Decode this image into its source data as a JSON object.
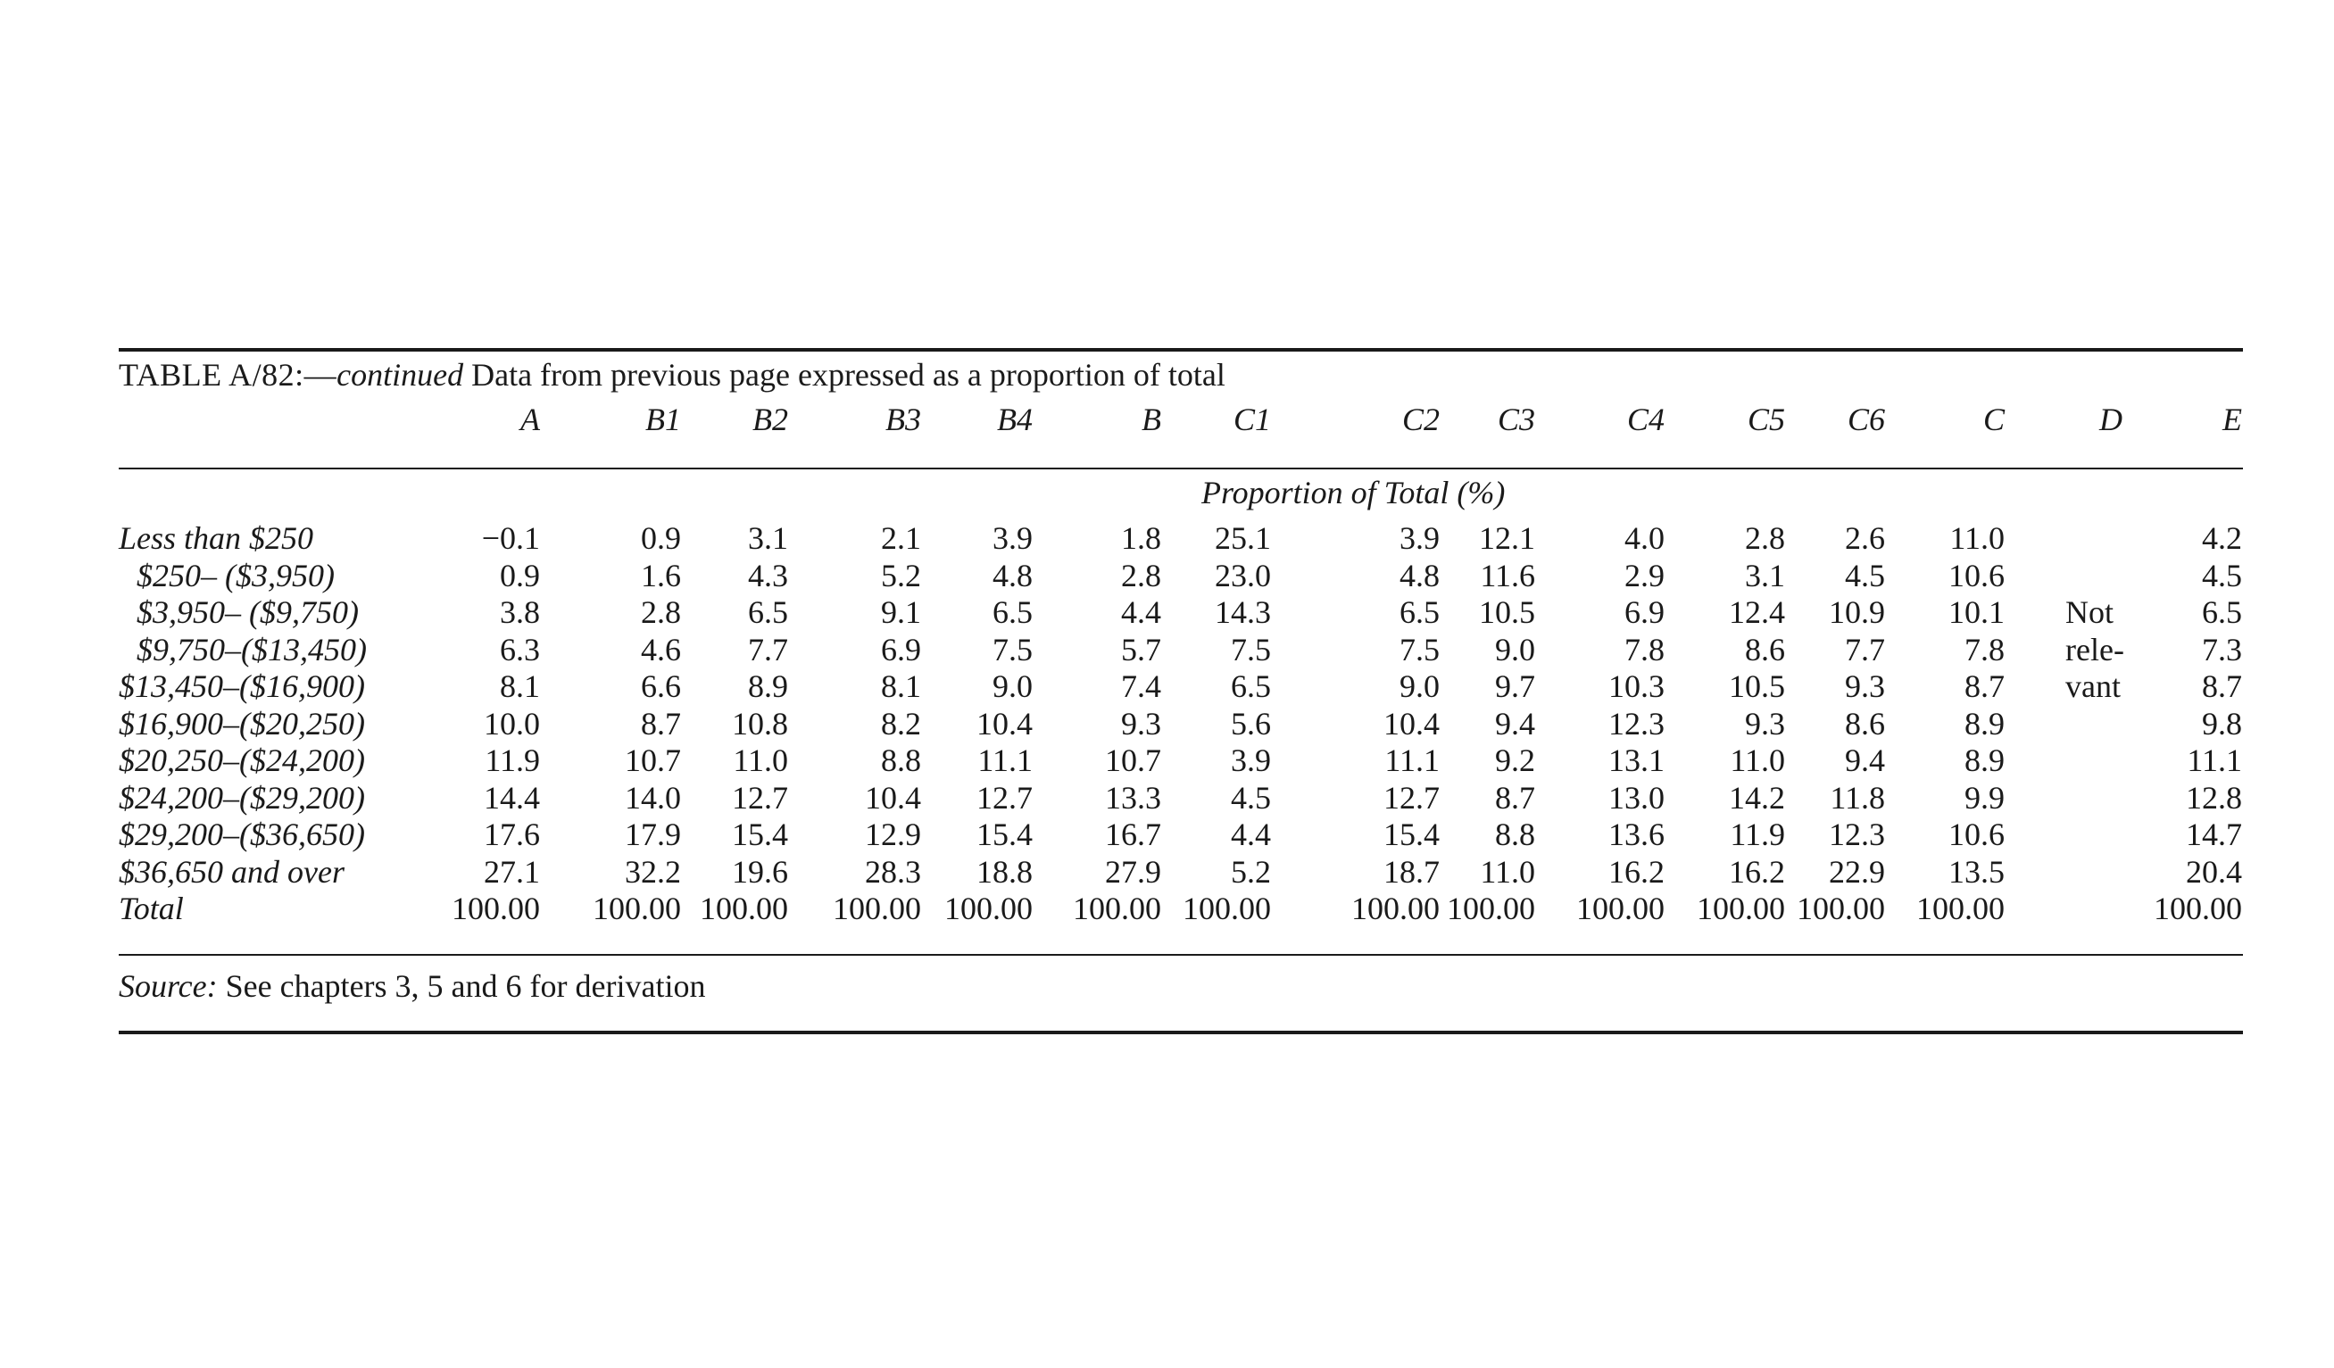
{
  "table": {
    "caption_id": "TABLE A/82:—",
    "caption_cont": "continued",
    "caption_text": " Data from previous page expressed as a proportion of total",
    "columns": [
      "A",
      "B1",
      "B2",
      "B3",
      "B4",
      "B",
      "C1",
      "C2",
      "C3",
      "C4",
      "C5",
      "C6",
      "C",
      "D",
      "E"
    ],
    "unit_label": "Proportion of Total (%)",
    "rows": [
      {
        "label": "Less than $250",
        "values": [
          "−0.1",
          "0.9",
          "3.1",
          "2.1",
          "3.9",
          "1.8",
          "25.1",
          "3.9",
          "12.1",
          "4.0",
          "2.8",
          "2.6",
          "11.0",
          "",
          "4.2"
        ]
      },
      {
        "label": "$250– ($3,950)",
        "values": [
          "0.9",
          "1.6",
          "4.3",
          "5.2",
          "4.8",
          "2.8",
          "23.0",
          "4.8",
          "11.6",
          "2.9",
          "3.1",
          "4.5",
          "10.6",
          "",
          "4.5"
        ]
      },
      {
        "label": "$3,950– ($9,750)",
        "values": [
          "3.8",
          "2.8",
          "6.5",
          "9.1",
          "6.5",
          "4.4",
          "14.3",
          "6.5",
          "10.5",
          "6.9",
          "12.4",
          "10.9",
          "10.1",
          "",
          "6.5"
        ]
      },
      {
        "label": "$9,750–($13,450)",
        "values": [
          "6.3",
          "4.6",
          "7.7",
          "6.9",
          "7.5",
          "5.7",
          "7.5",
          "7.5",
          "9.0",
          "7.8",
          "8.6",
          "7.7",
          "7.8",
          "",
          "7.3"
        ]
      },
      {
        "label": "$13,450–($16,900)",
        "values": [
          "8.1",
          "6.6",
          "8.9",
          "8.1",
          "9.0",
          "7.4",
          "6.5",
          "9.0",
          "9.7",
          "10.3",
          "10.5",
          "9.3",
          "8.7",
          "",
          "8.7"
        ]
      },
      {
        "label": "$16,900–($20,250)",
        "values": [
          "10.0",
          "8.7",
          "10.8",
          "8.2",
          "10.4",
          "9.3",
          "5.6",
          "10.4",
          "9.4",
          "12.3",
          "9.3",
          "8.6",
          "8.9",
          "",
          "9.8"
        ]
      },
      {
        "label": "$20,250–($24,200)",
        "values": [
          "11.9",
          "10.7",
          "11.0",
          "8.8",
          "11.1",
          "10.7",
          "3.9",
          "11.1",
          "9.2",
          "13.1",
          "11.0",
          "9.4",
          "8.9",
          "",
          "11.1"
        ]
      },
      {
        "label": "$24,200–($29,200)",
        "values": [
          "14.4",
          "14.0",
          "12.7",
          "10.4",
          "12.7",
          "13.3",
          "4.5",
          "12.7",
          "8.7",
          "13.0",
          "14.2",
          "11.8",
          "9.9",
          "",
          "12.8"
        ]
      },
      {
        "label": "$29,200–($36,650)",
        "values": [
          "17.6",
          "17.9",
          "15.4",
          "12.9",
          "15.4",
          "16.7",
          "4.4",
          "15.4",
          "8.8",
          "13.6",
          "11.9",
          "12.3",
          "10.6",
          "",
          "14.7"
        ]
      },
      {
        "label": "$36,650 and over",
        "values": [
          "27.1",
          "32.2",
          "19.6",
          "28.3",
          "18.8",
          "27.9",
          "5.2",
          "18.7",
          "11.0",
          "16.2",
          "16.2",
          "22.9",
          "13.5",
          "",
          "20.4"
        ]
      },
      {
        "label": "Total",
        "values": [
          "100.00",
          "100.00",
          "100.00",
          "100.00",
          "100.00",
          "100.00",
          "100.00",
          "100.00",
          "100.00",
          "100.00",
          "100.00",
          "100.00",
          "100.00",
          "",
          "100.00"
        ]
      }
    ],
    "d_note": [
      "Not",
      "rele-",
      "vant"
    ],
    "source_label": "Source:",
    "source_text": " See chapters 3, 5 and 6 for derivation"
  }
}
